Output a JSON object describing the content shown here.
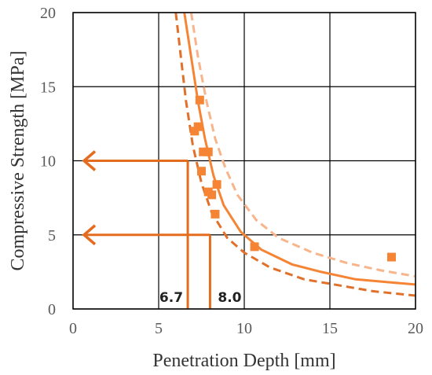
{
  "chart_data": {
    "type": "scatter",
    "xlabel": "Penetration Depth [mm]",
    "ylabel": "Compressive Strength [MPa]",
    "xlim": [
      0,
      20
    ],
    "ylim": [
      0,
      20
    ],
    "x_ticks": [
      0,
      5,
      10,
      15,
      20
    ],
    "y_ticks": [
      0,
      5,
      10,
      15,
      20
    ],
    "grid": true,
    "colors": {
      "points": "#F58535",
      "fit": "#F58535",
      "lower": "#E0702A",
      "upper": "#F8B48A",
      "arrows": "#E36C1E"
    },
    "series": [
      {
        "kind": "scatter",
        "marker": "square",
        "values": [
          {
            "x": 7.4,
            "y": 14.1
          },
          {
            "x": 7.1,
            "y": 12.0
          },
          {
            "x": 7.3,
            "y": 12.3
          },
          {
            "x": 7.6,
            "y": 10.6
          },
          {
            "x": 7.9,
            "y": 10.6
          },
          {
            "x": 7.5,
            "y": 9.3
          },
          {
            "x": 8.4,
            "y": 8.4
          },
          {
            "x": 7.9,
            "y": 7.9
          },
          {
            "x": 8.1,
            "y": 7.7
          },
          {
            "x": 8.3,
            "y": 6.4
          },
          {
            "x": 10.6,
            "y": 4.2
          },
          {
            "x": 18.6,
            "y": 3.5
          }
        ]
      },
      {
        "kind": "line",
        "style": "solid",
        "values": [
          {
            "x": 6.5,
            "y": 20.0
          },
          {
            "x": 6.9,
            "y": 17.0
          },
          {
            "x": 7.3,
            "y": 14.0
          },
          {
            "x": 7.7,
            "y": 11.5
          },
          {
            "x": 8.2,
            "y": 9.0
          },
          {
            "x": 8.8,
            "y": 7.0
          },
          {
            "x": 9.8,
            "y": 5.2
          },
          {
            "x": 11.0,
            "y": 4.0
          },
          {
            "x": 12.8,
            "y": 3.0
          },
          {
            "x": 14.5,
            "y": 2.5
          },
          {
            "x": 16.5,
            "y": 2.0
          },
          {
            "x": 18.5,
            "y": 1.8
          },
          {
            "x": 20.0,
            "y": 1.65
          }
        ]
      },
      {
        "kind": "line",
        "style": "dashed",
        "values": [
          {
            "x": 6.0,
            "y": 20.0
          },
          {
            "x": 6.3,
            "y": 17.0
          },
          {
            "x": 6.6,
            "y": 14.0
          },
          {
            "x": 7.0,
            "y": 11.0
          },
          {
            "x": 7.5,
            "y": 8.5
          },
          {
            "x": 8.1,
            "y": 6.5
          },
          {
            "x": 9.0,
            "y": 4.8
          },
          {
            "x": 10.0,
            "y": 3.8
          },
          {
            "x": 11.5,
            "y": 2.8
          },
          {
            "x": 13.5,
            "y": 2.0
          },
          {
            "x": 15.5,
            "y": 1.6
          },
          {
            "x": 17.5,
            "y": 1.2
          },
          {
            "x": 20.0,
            "y": 0.9
          }
        ]
      },
      {
        "kind": "line",
        "style": "dashed",
        "values": [
          {
            "x": 6.9,
            "y": 20.0
          },
          {
            "x": 7.3,
            "y": 17.0
          },
          {
            "x": 7.8,
            "y": 14.0
          },
          {
            "x": 8.3,
            "y": 11.5
          },
          {
            "x": 8.9,
            "y": 9.5
          },
          {
            "x": 9.6,
            "y": 7.7
          },
          {
            "x": 10.7,
            "y": 6.0
          },
          {
            "x": 12.0,
            "y": 4.8
          },
          {
            "x": 14.0,
            "y": 3.8
          },
          {
            "x": 16.0,
            "y": 3.1
          },
          {
            "x": 18.0,
            "y": 2.6
          },
          {
            "x": 20.0,
            "y": 2.2
          }
        ]
      }
    ],
    "annotations": [
      {
        "label": "6.7",
        "x": 6.7,
        "y": 10
      },
      {
        "label": "8.0",
        "x": 8.0,
        "y": 5
      }
    ]
  }
}
